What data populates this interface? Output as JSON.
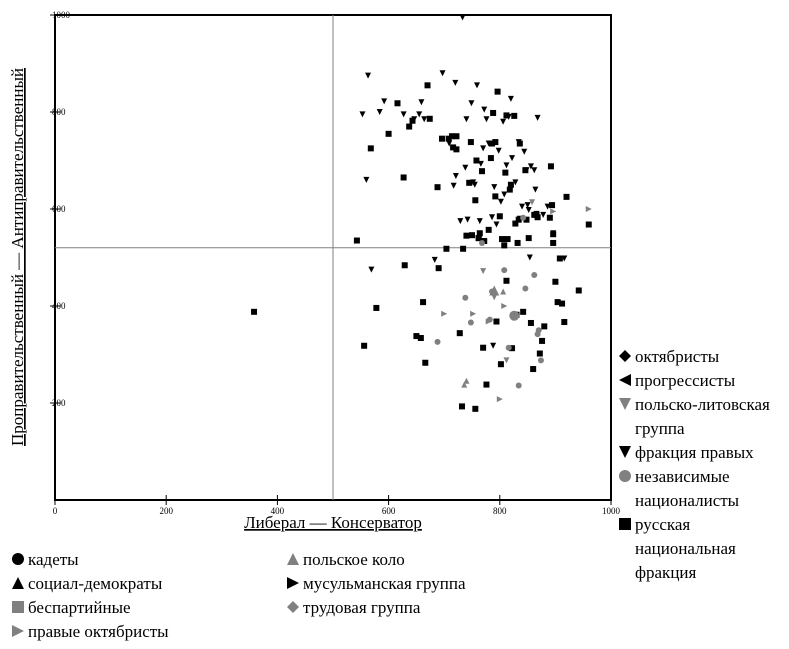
{
  "chart_data": {
    "type": "scatter",
    "xlabel": "Либерал — Консерватор",
    "ylabel": "Проправительственный — Антиправительственный",
    "xlim": [
      0,
      1000
    ],
    "ylim": [
      0,
      1000
    ],
    "xticks": [
      "0",
      "200",
      "400",
      "600",
      "800",
      "1000"
    ],
    "yticks": [
      "200",
      "400",
      "600",
      "800",
      "1000"
    ],
    "reference_lines": {
      "x": 500,
      "y": 520
    },
    "grid": false,
    "colors": {
      "black": "#000000",
      "gray": "#808080"
    },
    "legend": {
      "bottom_left": [
        {
          "label": "кадеты",
          "marker": "circle",
          "color": "#000000"
        },
        {
          "label": "социал-демократы",
          "marker": "triangle-up",
          "color": "#000000"
        },
        {
          "label": "беспартийные",
          "marker": "square",
          "color": "#808080"
        },
        {
          "label": "правые октябристы",
          "marker": "triangle-right",
          "color": "#808080"
        }
      ],
      "bottom_middle": [
        {
          "label": "польское коло",
          "marker": "triangle-up",
          "color": "#808080"
        },
        {
          "label": "мусульманская группа",
          "marker": "triangle-right",
          "color": "#000000"
        },
        {
          "label": "трудовая группа",
          "marker": "diamond",
          "color": "#808080"
        }
      ],
      "right": [
        {
          "label": "октябристы",
          "marker": "diamond",
          "color": "#000000"
        },
        {
          "label": "прогрессисты",
          "marker": "triangle-left",
          "color": "#000000"
        },
        {
          "label": "польско-литовская группа",
          "marker": "triangle-down",
          "color": "#808080"
        },
        {
          "label": "фракция правых",
          "marker": "triangle-down",
          "color": "#000000"
        },
        {
          "label": "независимые националисты",
          "marker": "circle",
          "color": "#808080"
        },
        {
          "label": "русская национальная фракция",
          "marker": "square",
          "color": "#000000"
        }
      ]
    },
    "series": [
      {
        "marker": "square",
        "color": "#000000",
        "points": [
          [
            358,
            388
          ],
          [
            543,
            535
          ],
          [
            556,
            318
          ],
          [
            568,
            725
          ],
          [
            578,
            396
          ],
          [
            600,
            755
          ],
          [
            616,
            818
          ],
          [
            627,
            665
          ],
          [
            629,
            484
          ],
          [
            637,
            770
          ],
          [
            643,
            782
          ],
          [
            650,
            338
          ],
          [
            658,
            334
          ],
          [
            662,
            408
          ],
          [
            666,
            283
          ],
          [
            670,
            855
          ],
          [
            674,
            786
          ],
          [
            688,
            645
          ],
          [
            690,
            478
          ],
          [
            696,
            745
          ],
          [
            704,
            518
          ],
          [
            708,
            745
          ],
          [
            714,
            750
          ],
          [
            716,
            727
          ],
          [
            722,
            750
          ],
          [
            722,
            723
          ],
          [
            728,
            344
          ],
          [
            732,
            193
          ],
          [
            734,
            518
          ],
          [
            740,
            545
          ],
          [
            745,
            654
          ],
          [
            748,
            738
          ],
          [
            750,
            546
          ],
          [
            756,
            618
          ],
          [
            756,
            188
          ],
          [
            758,
            700
          ],
          [
            762,
            540
          ],
          [
            762,
            540
          ],
          [
            764,
            550
          ],
          [
            768,
            678
          ],
          [
            770,
            314
          ],
          [
            772,
            534
          ],
          [
            776,
            238
          ],
          [
            780,
            557
          ],
          [
            784,
            705
          ],
          [
            786,
            735
          ],
          [
            788,
            798
          ],
          [
            792,
            738
          ],
          [
            792,
            626
          ],
          [
            794,
            368
          ],
          [
            796,
            842
          ],
          [
            800,
            585
          ],
          [
            802,
            280
          ],
          [
            804,
            538
          ],
          [
            808,
            525
          ],
          [
            810,
            675
          ],
          [
            812,
            793
          ],
          [
            812,
            452
          ],
          [
            814,
            538
          ],
          [
            818,
            640
          ],
          [
            820,
            650
          ],
          [
            822,
            313
          ],
          [
            826,
            792
          ],
          [
            828,
            570
          ],
          [
            830,
            382
          ],
          [
            832,
            530
          ],
          [
            834,
            578
          ],
          [
            836,
            735
          ],
          [
            842,
            388
          ],
          [
            846,
            680
          ],
          [
            848,
            578
          ],
          [
            852,
            540
          ],
          [
            856,
            365
          ],
          [
            860,
            270
          ],
          [
            862,
            588
          ],
          [
            866,
            588
          ],
          [
            868,
            583
          ],
          [
            872,
            302
          ],
          [
            876,
            328
          ],
          [
            880,
            358
          ],
          [
            890,
            582
          ],
          [
            892,
            688
          ],
          [
            894,
            608
          ],
          [
            896,
            548
          ],
          [
            896,
            530
          ],
          [
            900,
            450
          ],
          [
            904,
            408
          ],
          [
            908,
            498
          ],
          [
            912,
            405
          ],
          [
            916,
            367
          ],
          [
            920,
            625
          ],
          [
            942,
            432
          ],
          [
            960,
            568
          ]
        ]
      },
      {
        "marker": "triangle-down",
        "color": "#000000",
        "points": [
          [
            553,
            795
          ],
          [
            560,
            660
          ],
          [
            563,
            875
          ],
          [
            569,
            475
          ],
          [
            584,
            800
          ],
          [
            592,
            822
          ],
          [
            627,
            795
          ],
          [
            646,
            785
          ],
          [
            655,
            795
          ],
          [
            659,
            820
          ],
          [
            664,
            785
          ],
          [
            683,
            495
          ],
          [
            697,
            880
          ],
          [
            709,
            735
          ],
          [
            717,
            648
          ],
          [
            720,
            860
          ],
          [
            721,
            668
          ],
          [
            729,
            575
          ],
          [
            733,
            995
          ],
          [
            738,
            685
          ],
          [
            740,
            785
          ],
          [
            742,
            578
          ],
          [
            749,
            818
          ],
          [
            752,
            655
          ],
          [
            755,
            650
          ],
          [
            759,
            855
          ],
          [
            764,
            575
          ],
          [
            766,
            693
          ],
          [
            770,
            725
          ],
          [
            772,
            805
          ],
          [
            776,
            785
          ],
          [
            780,
            735
          ],
          [
            786,
            583
          ],
          [
            788,
            318
          ],
          [
            790,
            645
          ],
          [
            794,
            568
          ],
          [
            798,
            720
          ],
          [
            802,
            615
          ],
          [
            806,
            780
          ],
          [
            808,
            630
          ],
          [
            812,
            690
          ],
          [
            816,
            790
          ],
          [
            820,
            827
          ],
          [
            822,
            705
          ],
          [
            828,
            655
          ],
          [
            834,
            738
          ],
          [
            836,
            580
          ],
          [
            840,
            605
          ],
          [
            844,
            718
          ],
          [
            848,
            680
          ],
          [
            850,
            608
          ],
          [
            852,
            598
          ],
          [
            854,
            500
          ],
          [
            856,
            688
          ],
          [
            862,
            680
          ],
          [
            864,
            640
          ],
          [
            866,
            590
          ],
          [
            868,
            788
          ],
          [
            878,
            588
          ],
          [
            886,
            605
          ],
          [
            896,
            550
          ],
          [
            916,
            498
          ]
        ]
      },
      {
        "marker": "circle",
        "color": "#808080",
        "points": [
          [
            688,
            326
          ],
          [
            738,
            417
          ],
          [
            748,
            366
          ],
          [
            768,
            530
          ],
          [
            782,
            372
          ],
          [
            786,
            430
          ],
          [
            808,
            474
          ],
          [
            816,
            314
          ],
          [
            828,
            382
          ],
          [
            834,
            236
          ],
          [
            842,
            582
          ],
          [
            846,
            436
          ],
          [
            862,
            464
          ],
          [
            868,
            342
          ],
          [
            870,
            350
          ],
          [
            874,
            288
          ]
        ]
      },
      {
        "marker": "triangle-down",
        "color": "#808080",
        "points": [
          [
            770,
            472
          ],
          [
            790,
            418
          ],
          [
            812,
            288
          ],
          [
            858,
            614
          ]
        ]
      },
      {
        "marker": "triangle-right",
        "color": "#808080",
        "points": [
          [
            700,
            384
          ],
          [
            752,
            384
          ],
          [
            780,
            368
          ],
          [
            800,
            208
          ],
          [
            808,
            400
          ],
          [
            896,
            595
          ],
          [
            960,
            600
          ]
        ]
      },
      {
        "marker": "triangle-up",
        "color": "#808080",
        "points": [
          [
            736,
            238
          ],
          [
            740,
            246
          ],
          [
            806,
            430
          ]
        ]
      }
    ]
  }
}
